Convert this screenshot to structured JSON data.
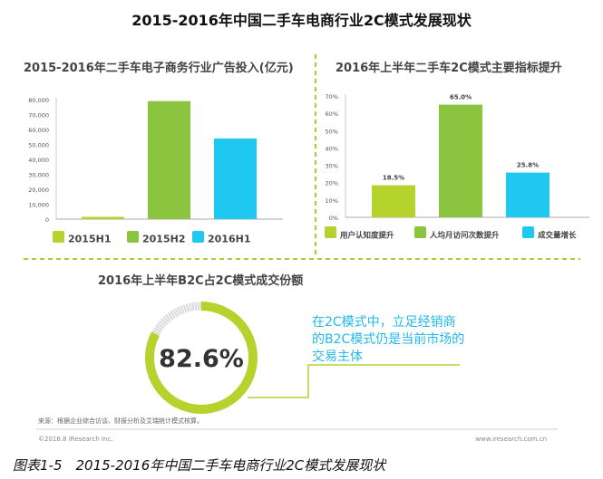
{
  "title": "2015-2016年中国二手车电商行业2C模式发展现状",
  "colors": {
    "lime": "#b5d22d",
    "green": "#8bc53f",
    "cyan": "#1fc8f0",
    "gray": "#d9d9d9",
    "note": "#22b8e8"
  },
  "chart_data": [
    {
      "type": "bar",
      "title": "2015-2016年二手车电子商务行业广告投入(亿元)",
      "categories": [
        "2015H1",
        "2015H2",
        "2016H1"
      ],
      "values": [
        1500,
        79000,
        54000
      ],
      "yticks": [
        "0",
        "10,000",
        "20,000",
        "30,000",
        "40,000",
        "50,000",
        "60,000",
        "70,000",
        "80,000"
      ],
      "ylim": [
        0,
        80000
      ],
      "legend": [
        "2015H1",
        "2015H2",
        "2016H1"
      ],
      "legend_position": "bottom"
    },
    {
      "type": "bar",
      "title": "2016年上半年二手车2C模式主要指标提升",
      "categories": [
        "用户认知度提升",
        "人均月访问次数提升",
        "成交量增长"
      ],
      "values": [
        18.5,
        65.0,
        25.8
      ],
      "data_labels": [
        "18.5%",
        "65.0%",
        "25.8%"
      ],
      "yticks": [
        "0%",
        "10%",
        "20%",
        "30%",
        "40%",
        "50%",
        "60%",
        "70%"
      ],
      "ylim": [
        0,
        70
      ],
      "legend": [
        "用户认知度提升",
        "人均月访问次数提升",
        "成交量增长"
      ],
      "legend_position": "bottom"
    },
    {
      "type": "pie",
      "title": "2016年上半年B2C占2C模式成交份额",
      "values": [
        82.6,
        17.4
      ],
      "center_label": "82.6%"
    }
  ],
  "note": "在2C模式中，立足经销商的B2C模式仍是当前市场的交易主体",
  "footer": {
    "source": "来源：根据企业综合访谈、财报分析及艾瑞统计模式核算。",
    "copyright": "©2016.8 iResearch Inc.",
    "url": "www.iresearch.com.cn"
  },
  "caption": "图表1-5　2015-2016年中国二手车电商行业2C模式发展现状"
}
